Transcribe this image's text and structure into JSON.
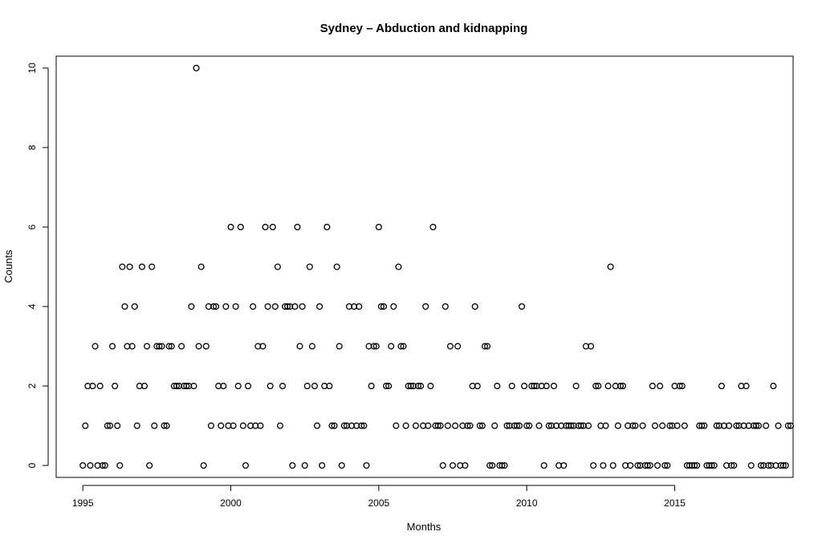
{
  "chart_data": {
    "type": "scatter",
    "title": "Sydney – Abduction and kidnapping",
    "xlabel": "Months",
    "ylabel": "Counts",
    "xlim": [
      1994.1,
      2019.0
    ],
    "ylim": [
      -0.3,
      10.3
    ],
    "x_ticks": [
      1995,
      2000,
      2005,
      2010,
      2015
    ],
    "x_tick_labels": [
      "1995",
      "2000",
      "2005",
      "2010",
      "2015"
    ],
    "y_ticks": [
      0,
      2,
      4,
      6,
      8,
      10
    ],
    "y_tick_labels": [
      "0",
      "2",
      "4",
      "6",
      "8",
      "10"
    ],
    "grid": false,
    "marker": "open-circle",
    "x_start": 1995.0,
    "x_step": 0.0833333,
    "values": [
      0,
      1,
      2,
      0,
      2,
      3,
      0,
      2,
      0,
      0,
      1,
      1,
      3,
      2,
      1,
      0,
      5,
      4,
      3,
      5,
      3,
      4,
      1,
      2,
      5,
      2,
      3,
      0,
      5,
      1,
      3,
      3,
      3,
      1,
      1,
      3,
      3,
      2,
      2,
      2,
      3,
      2,
      2,
      2,
      4,
      2,
      10,
      3,
      5,
      0,
      3,
      4,
      1,
      4,
      4,
      2,
      1,
      2,
      4,
      1,
      6,
      1,
      4,
      2,
      6,
      1,
      0,
      2,
      1,
      4,
      1,
      3,
      1,
      3,
      6,
      4,
      2,
      6,
      4,
      5,
      1,
      2,
      4,
      4,
      4,
      0,
      4,
      6,
      3,
      4,
      0,
      2,
      5,
      3,
      2,
      1,
      4,
      0,
      2,
      6,
      2,
      1,
      1,
      5,
      3,
      0,
      1,
      1,
      4,
      1,
      4,
      1,
      4,
      1,
      1,
      0,
      3,
      2,
      3,
      3,
      6,
      4,
      4,
      2,
      2,
      3,
      4,
      1,
      5,
      3,
      3,
      1,
      2,
      2,
      2,
      1,
      2,
      2,
      1,
      4,
      1,
      2,
      6,
      1,
      1,
      1,
      0,
      4,
      1,
      3,
      0,
      1,
      3,
      0,
      1,
      0,
      1,
      1,
      2,
      4,
      2,
      1,
      1,
      3,
      3,
      0,
      0,
      1,
      2,
      0,
      0,
      0,
      1,
      1,
      2,
      1,
      1,
      1,
      4,
      2,
      1,
      1,
      2,
      2,
      2,
      1,
      2,
      0,
      2,
      1,
      1,
      2,
      1,
      0,
      1,
      0,
      1,
      1,
      1,
      1,
      2,
      1,
      1,
      1,
      3,
      1,
      3,
      0,
      2,
      2,
      1,
      0,
      1,
      2,
      5,
      0,
      2,
      1,
      2,
      2,
      0,
      1,
      0,
      1,
      1,
      0,
      0,
      1,
      0,
      0,
      0,
      2,
      1,
      0,
      2,
      1,
      0,
      0,
      1,
      1,
      2,
      1,
      2,
      2,
      1,
      0,
      0,
      0,
      0,
      0,
      1,
      1,
      1,
      0,
      0,
      0,
      0,
      1,
      1,
      2,
      1,
      0,
      1,
      0,
      0,
      1,
      1,
      2,
      1,
      2,
      1,
      0,
      1,
      1,
      1,
      0,
      0,
      1,
      0,
      0,
      2,
      0,
      1,
      0,
      0,
      0,
      1,
      1
    ]
  }
}
